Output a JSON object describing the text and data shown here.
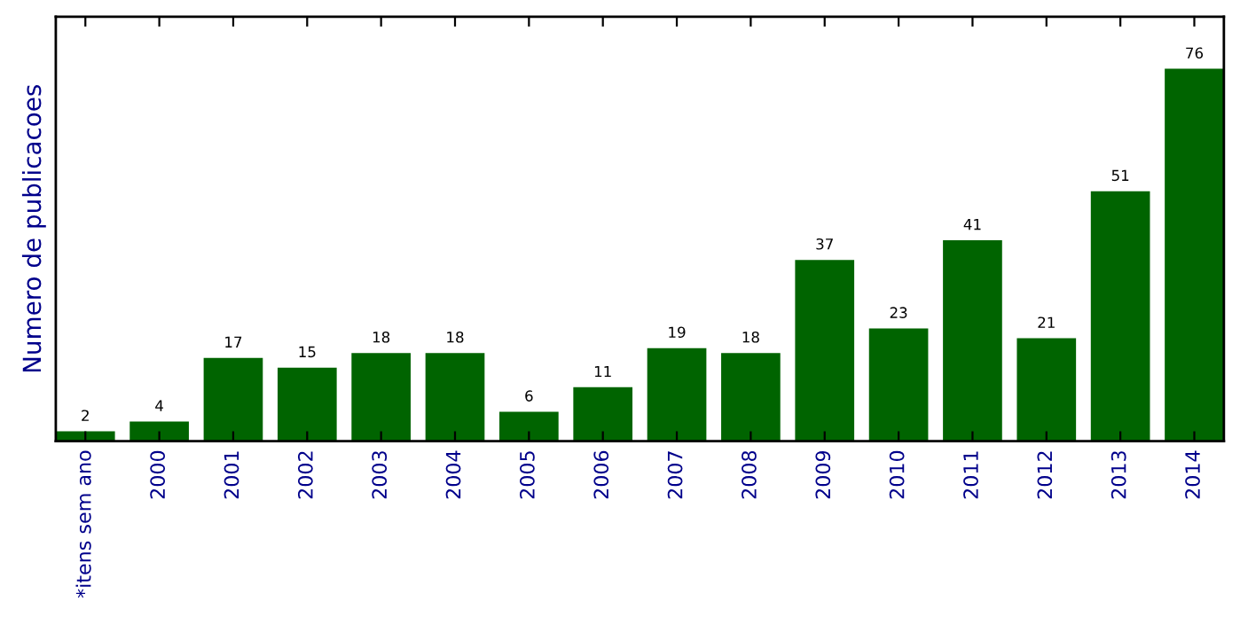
{
  "chart_data": {
    "type": "bar",
    "ylabel": "Numero de publicacoes",
    "categories": [
      "*itens sem ano",
      "2000",
      "2001",
      "2002",
      "2003",
      "2004",
      "2005",
      "2006",
      "2007",
      "2008",
      "2009",
      "2010",
      "2011",
      "2012",
      "2013",
      "2014"
    ],
    "values": [
      2,
      4,
      17,
      15,
      18,
      18,
      6,
      11,
      19,
      18,
      37,
      23,
      41,
      21,
      51,
      76
    ],
    "color": "#006400",
    "data_labels": true,
    "tick_labels": "x",
    "grid": false,
    "legend": false
  }
}
